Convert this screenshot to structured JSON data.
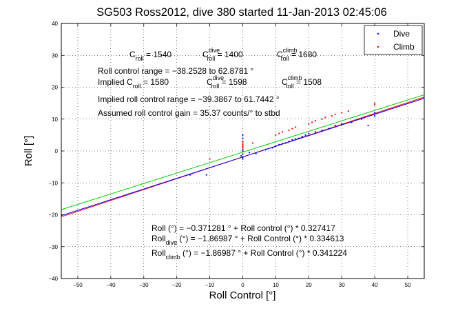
{
  "chart_data": {
    "type": "scatter",
    "title": "SG503 Ross2012, dive 380 started 11-Jan-2013 02:45:06",
    "xlabel": "Roll Control [°]",
    "ylabel": "Roll [°]",
    "xlim": [
      -55,
      55
    ],
    "ylim": [
      -40,
      40
    ],
    "xticks": [
      "−50",
      "−40",
      "−30",
      "−20",
      "−10",
      "0",
      "10",
      "20",
      "30",
      "40",
      "50"
    ],
    "yticks": [
      "40",
      "30",
      "20",
      "10",
      "0",
      "−10",
      "−20",
      "−30",
      "−40"
    ],
    "xtick_values": [
      -50,
      -40,
      -30,
      -20,
      -10,
      0,
      10,
      20,
      30,
      40,
      50
    ],
    "ytick_values": [
      40,
      30,
      20,
      10,
      0,
      -10,
      -20,
      -30,
      -40
    ],
    "grid": "dotted",
    "legend_position": "top-right",
    "series": [
      {
        "name": "Dive",
        "color": "#0000ff",
        "points": [
          [
            -11,
            -7.5
          ],
          [
            -16,
            -7.5
          ],
          [
            0,
            5
          ],
          [
            0,
            4
          ],
          [
            0,
            3
          ],
          [
            0,
            1
          ],
          [
            0,
            0
          ],
          [
            0,
            -1
          ],
          [
            0,
            -2
          ],
          [
            0,
            -2.5
          ],
          [
            -0.5,
            -1.5
          ],
          [
            2,
            -0.5
          ],
          [
            4,
            -0.8
          ],
          [
            7,
            0.5
          ],
          [
            9,
            1
          ],
          [
            10,
            1.5
          ],
          [
            11,
            2
          ],
          [
            12,
            2.3
          ],
          [
            13,
            2.5
          ],
          [
            14,
            3
          ],
          [
            15,
            3.5
          ],
          [
            16,
            3.8
          ],
          [
            17,
            4
          ],
          [
            18,
            4.5
          ],
          [
            19,
            5
          ],
          [
            20,
            5.5
          ],
          [
            22,
            6
          ],
          [
            24,
            6.5
          ],
          [
            26,
            7
          ],
          [
            28,
            8
          ],
          [
            30,
            8.5
          ],
          [
            33,
            9
          ],
          [
            36,
            10
          ],
          [
            40,
            11
          ],
          [
            40,
            12
          ],
          [
            38,
            8
          ]
        ]
      },
      {
        "name": "Climb",
        "color": "#ff0000",
        "points": [
          [
            -10,
            -2.5
          ],
          [
            0,
            3
          ],
          [
            0,
            2.5
          ],
          [
            0,
            2
          ],
          [
            0,
            1.5
          ],
          [
            0,
            1
          ],
          [
            0,
            0.5
          ],
          [
            3,
            2.5
          ],
          [
            10,
            5
          ],
          [
            11,
            5.5
          ],
          [
            12,
            6
          ],
          [
            14,
            6.5
          ],
          [
            15,
            7
          ],
          [
            16,
            7.5
          ],
          [
            20,
            8.5
          ],
          [
            21,
            9
          ],
          [
            22,
            9.5
          ],
          [
            24,
            10
          ],
          [
            25,
            10.5
          ],
          [
            27,
            11
          ],
          [
            28,
            11.5
          ],
          [
            30,
            12
          ],
          [
            32,
            12.5
          ],
          [
            40,
            14.5
          ],
          [
            40,
            15
          ]
        ]
      }
    ],
    "fit_lines": [
      {
        "color": "#ff0000",
        "intercept": -1.86987,
        "slope": 0.341224
      },
      {
        "color": "#00cc00",
        "intercept": -0.371281,
        "slope": 0.327417
      },
      {
        "color": "#0000ff",
        "intercept": -1.86987,
        "slope": 0.334613
      }
    ]
  },
  "annotations": {
    "c_roll": {
      "base": "C",
      "sub": "roll",
      "value": " = 1540"
    },
    "c_roll_dive": {
      "base": "C",
      "sub": "roll",
      "sup": "dive",
      "value": " = 1400"
    },
    "c_roll_climb": {
      "base": "C",
      "sub": "roll",
      "sup": "climb",
      "value": " = 1680"
    },
    "roll_control_range": "Roll control range = −38.2528 to 62.8781 °",
    "implied_c_roll": {
      "prefix": "Implied C",
      "sub": "roll",
      "value": " = 1580"
    },
    "implied_c_roll_dive": {
      "base": "C",
      "sub": "roll",
      "sup": "dive",
      "value": " = 1598"
    },
    "implied_c_roll_climb": {
      "base": "C",
      "sub": "roll",
      "sup": "climb",
      "value": " = 1508"
    },
    "implied_range": "Implied roll control range = −39.3867 to 61.7442 °",
    "assumed_gain": "Assumed roll control gain = 35.37 counts/° to stbd",
    "eq_roll": "Roll (°) = −0.371281 ° + Roll control (°) * 0.327417",
    "eq_dive": {
      "base": "Roll",
      "sub": "dive",
      "text": " (°) = −1.86987 ° + Roll Control (°) * 0.334613"
    },
    "eq_climb": {
      "base": "Roll",
      "sub": "climb",
      "text": " (°) = −1.86987 ° + Roll Control (°) * 0.341224"
    }
  }
}
